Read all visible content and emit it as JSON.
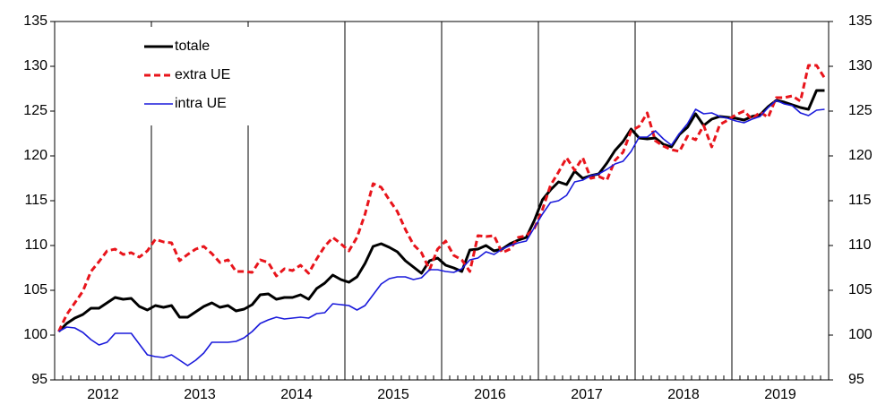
{
  "chart_data": {
    "type": "line",
    "categories": [
      "2012",
      null,
      null,
      null,
      null,
      null,
      null,
      null,
      null,
      null,
      null,
      null,
      "2013",
      null,
      null,
      null,
      null,
      null,
      null,
      null,
      null,
      null,
      null,
      null,
      "2014",
      null,
      null,
      null,
      null,
      null,
      null,
      null,
      null,
      null,
      null,
      null,
      "2015",
      null,
      null,
      null,
      null,
      null,
      null,
      null,
      null,
      null,
      null,
      null,
      "2016",
      null,
      null,
      null,
      null,
      null,
      null,
      null,
      null,
      null,
      null,
      null,
      "2017",
      null,
      null,
      null,
      null,
      null,
      null,
      null,
      null,
      null,
      null,
      null,
      "2018",
      null,
      null,
      null,
      null,
      null,
      null,
      null,
      null,
      null,
      null,
      null,
      "2019",
      null,
      null,
      null,
      null,
      null,
      null,
      null,
      null,
      null,
      null,
      null
    ],
    "series": [
      {
        "name": "totale",
        "color": "#000000",
        "dash": false,
        "width": 3,
        "values": [
          100.4,
          101.3,
          101.9,
          102.3,
          103.0,
          103.0,
          103.6,
          104.2,
          104.0,
          104.1,
          103.2,
          102.8,
          103.3,
          103.1,
          103.3,
          102.0,
          102.0,
          102.6,
          103.2,
          103.6,
          103.1,
          103.3,
          102.7,
          102.9,
          103.4,
          104.5,
          104.6,
          104.0,
          104.2,
          104.2,
          104.5,
          104.0,
          105.2,
          105.8,
          106.7,
          106.2,
          105.9,
          106.5,
          108.0,
          109.9,
          110.2,
          109.8,
          109.3,
          108.3,
          107.6,
          106.9,
          108.3,
          108.6,
          107.8,
          107.5,
          107.1,
          109.5,
          109.6,
          110.0,
          109.4,
          109.6,
          110.2,
          110.6,
          110.9,
          112.8,
          115.1,
          116.2,
          117.1,
          116.8,
          118.3,
          117.5,
          117.8,
          118.0,
          119.2,
          120.6,
          121.6,
          123.0,
          122.0,
          121.9,
          122.0,
          121.3,
          121.0,
          122.4,
          123.2,
          124.7,
          123.4,
          124.1,
          124.4,
          124.3,
          124.2,
          124.0,
          124.4,
          124.6,
          125.5,
          126.2,
          126.0,
          125.7,
          125.4,
          125.2,
          127.3,
          127.3
        ]
      },
      {
        "name": "extra UE",
        "color": "#e8141b",
        "dash": true,
        "width": 3,
        "values": [
          100.4,
          102.3,
          103.6,
          104.9,
          107.1,
          108.2,
          109.4,
          109.6,
          109.0,
          109.2,
          108.7,
          109.4,
          110.7,
          110.4,
          110.3,
          108.3,
          109.0,
          109.6,
          109.9,
          109.1,
          108.1,
          108.4,
          107.1,
          107.1,
          107.0,
          108.4,
          108.1,
          106.6,
          107.4,
          107.2,
          107.8,
          106.9,
          108.5,
          109.9,
          110.9,
          110.2,
          109.4,
          110.9,
          113.5,
          116.9,
          116.5,
          115.1,
          113.8,
          111.8,
          110.1,
          109.2,
          107.3,
          109.6,
          110.5,
          108.9,
          108.4,
          107.1,
          111.1,
          111.0,
          111.1,
          109.2,
          109.6,
          110.9,
          111.1,
          111.9,
          114.0,
          116.7,
          118.2,
          119.8,
          118.4,
          119.8,
          117.5,
          117.7,
          117.3,
          119.5,
          120.4,
          122.8,
          123.3,
          124.8,
          121.7,
          121.1,
          120.7,
          120.5,
          122.2,
          121.8,
          123.4,
          121.0,
          123.5,
          124.0,
          124.6,
          125.0,
          124.1,
          124.9,
          124.3,
          126.5,
          126.5,
          126.7,
          126.1,
          130.1,
          130.1,
          128.7
        ]
      },
      {
        "name": "intra UE",
        "color": "#1a1adb",
        "dash": false,
        "width": 1.6,
        "values": [
          100.4,
          100.9,
          100.8,
          100.3,
          99.5,
          98.9,
          99.2,
          100.2,
          100.2,
          100.2,
          99.0,
          97.8,
          97.6,
          97.5,
          97.8,
          97.2,
          96.6,
          97.2,
          98.0,
          99.2,
          99.2,
          99.2,
          99.3,
          99.7,
          100.4,
          101.3,
          101.7,
          102.0,
          101.8,
          101.9,
          102.0,
          101.9,
          102.4,
          102.5,
          103.5,
          103.4,
          103.3,
          102.8,
          103.3,
          104.5,
          105.7,
          106.3,
          106.5,
          106.5,
          106.2,
          106.4,
          107.3,
          107.3,
          107.1,
          107.0,
          107.4,
          108.4,
          108.6,
          109.3,
          109.0,
          109.6,
          110.0,
          110.3,
          110.5,
          112.0,
          113.5,
          114.8,
          115.0,
          115.6,
          117.1,
          117.3,
          117.8,
          118.0,
          118.5,
          119.1,
          119.4,
          120.5,
          122.1,
          122.1,
          122.8,
          121.9,
          121.2,
          122.5,
          123.6,
          125.2,
          124.7,
          124.8,
          124.4,
          124.2,
          123.9,
          123.7,
          124.1,
          124.4,
          125.4,
          126.2,
          125.8,
          125.6,
          124.8,
          124.5,
          125.1,
          125.2
        ]
      }
    ],
    "ylim": [
      95,
      135
    ],
    "yticks": [
      95,
      100,
      105,
      110,
      115,
      120,
      125,
      130,
      135
    ],
    "y2lim": [
      95,
      135
    ],
    "y2ticks": [
      95,
      100,
      105,
      110,
      115,
      120,
      125,
      130,
      135
    ],
    "grid": true,
    "legend": "upper left"
  }
}
